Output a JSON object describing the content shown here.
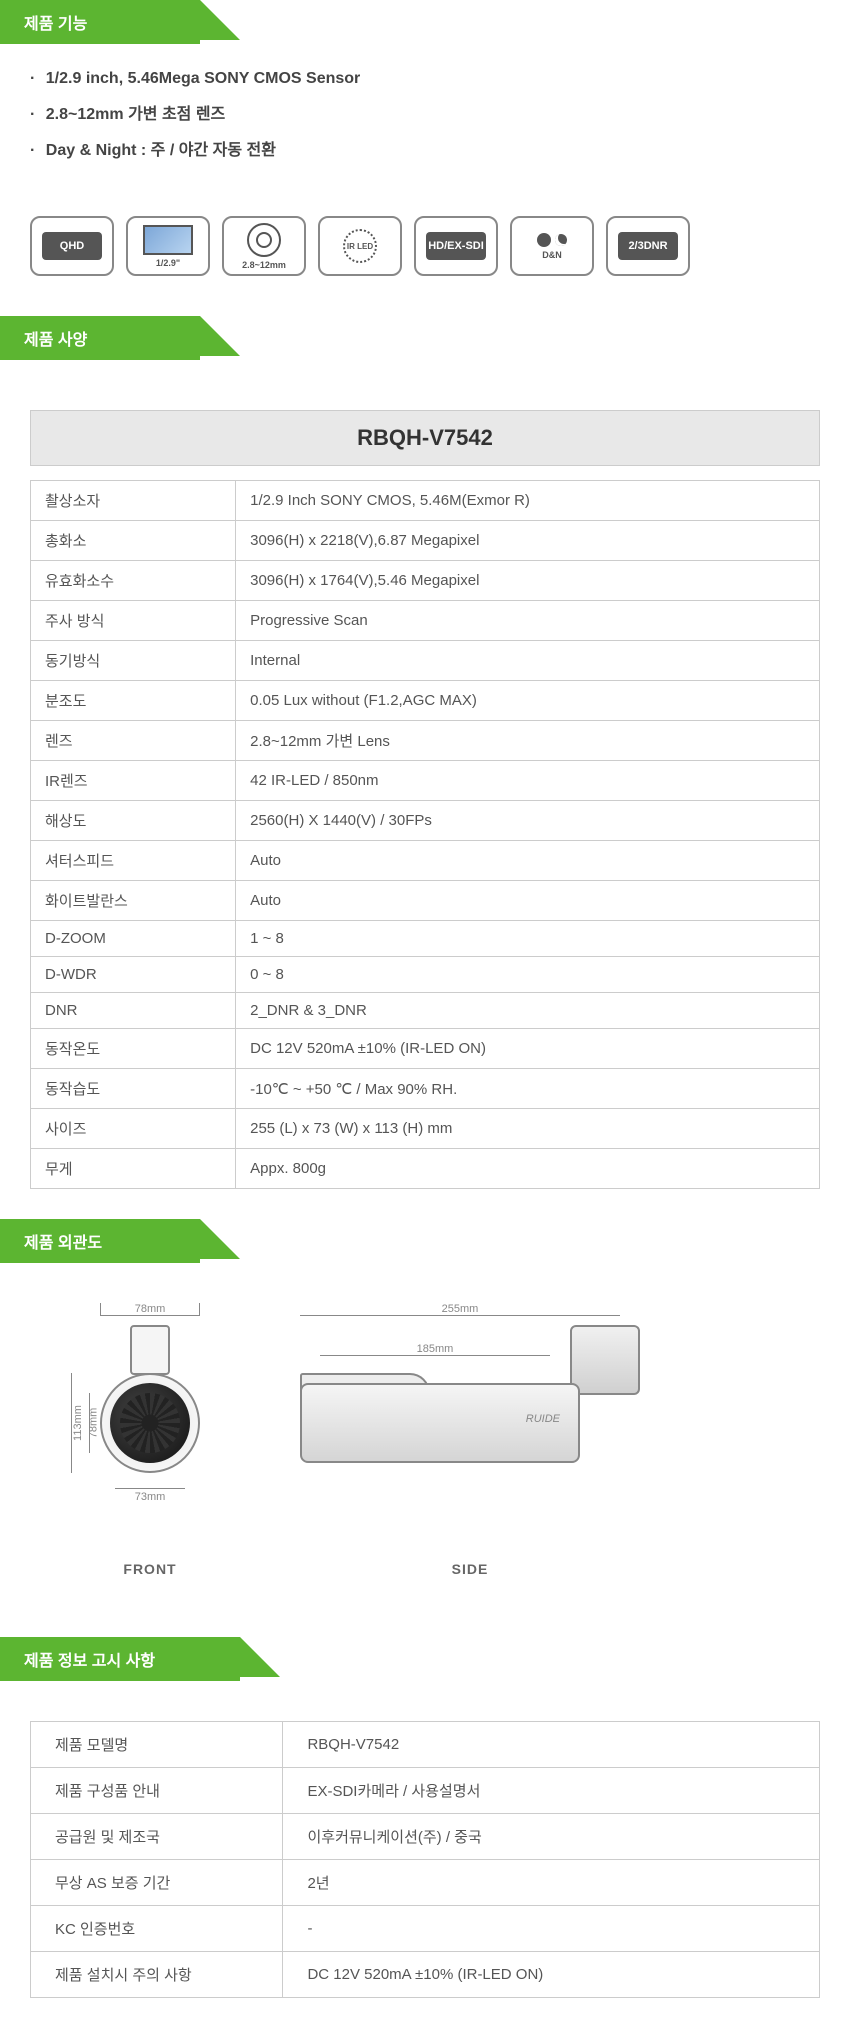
{
  "sections": {
    "features": "제품 기능",
    "spec": "제품 사양",
    "exterior": "제품 외관도",
    "info": "제품 정보 고시 사항"
  },
  "features": [
    "1/2.9 inch, 5.46Mega  SONY CMOS Sensor",
    "2.8~12mm 가변 초점 렌즈",
    "Day & Night : 주 / 야간 자동 전환"
  ],
  "icons": {
    "qhd": "QHD",
    "sensor": "1/2.9\"",
    "lens": "2.8~12mm",
    "irled": "IR LED",
    "hdexsdi": "HD/EX-SDI",
    "dn": "D&N",
    "dnr": "2/3DNR"
  },
  "spec_title": "RBQH-V7542",
  "spec_rows": [
    {
      "k": "촬상소자",
      "v": "1/2.9 Inch SONY CMOS, 5.46M(Exmor R)"
    },
    {
      "k": "총화소",
      "v": "3096(H) x 2218(V),6.87 Megapixel"
    },
    {
      "k": "유효화소수",
      "v": "3096(H) x 1764(V),5.46 Megapixel"
    },
    {
      "k": "주사 방식",
      "v": "Progressive Scan"
    },
    {
      "k": "동기방식",
      "v": "Internal"
    },
    {
      "k": "분조도",
      "v": "0.05 Lux without (F1.2,AGC MAX)"
    },
    {
      "k": "렌즈",
      "v": "2.8~12mm 가변 Lens"
    },
    {
      "k": "IR렌즈",
      "v": "42 IR-LED / 850nm"
    },
    {
      "k": "해상도",
      "v": "2560(H) X 1440(V) / 30FPs"
    },
    {
      "k": "셔터스피드",
      "v": "Auto"
    },
    {
      "k": "화이트발란스",
      "v": "Auto"
    },
    {
      "k": "D-ZOOM",
      "v": "1 ~ 8"
    },
    {
      "k": "D-WDR",
      "v": "0 ~ 8"
    },
    {
      "k": "DNR",
      "v": "2_DNR & 3_DNR"
    },
    {
      "k": "동작온도",
      "v": "DC 12V 520mA ±10% (IR-LED ON)"
    },
    {
      "k": "동작습도",
      "v": "-10℃ ~ +50 ℃ / Max 90% RH."
    },
    {
      "k": "사이즈",
      "v": "255 (L) x 73 (W) x 113 (H) mm"
    },
    {
      "k": "무게",
      "v": "Appx. 800g"
    }
  ],
  "diagram": {
    "front_label": "FRONT",
    "side_label": "SIDE",
    "dims": {
      "front_top": "78mm",
      "front_h": "113mm",
      "front_h2": "78mm",
      "front_bot": "73mm",
      "side_top": "255mm",
      "side_top2": "185mm",
      "brand": "RUIDE"
    }
  },
  "info_rows": [
    {
      "k": "제품 모델명",
      "v": "RBQH-V7542"
    },
    {
      "k": "제품 구성품 안내",
      "v": "EX-SDI카메라 / 사용설명서"
    },
    {
      "k": "공급원 및 제조국",
      "v": "이후커뮤니케이션(주) / 중국"
    },
    {
      "k": "무상 AS 보증 기간",
      "v": "2년"
    },
    {
      "k": "KC 인증번호",
      "v": "-"
    },
    {
      "k": "제품 설치시 주의 사항",
      "v": "DC 12V 520mA ±10% (IR-LED ON)"
    }
  ],
  "colors": {
    "accent": "#5cb531",
    "header_bg": "#e8e8e8",
    "border": "#cccccc",
    "text": "#555555"
  }
}
